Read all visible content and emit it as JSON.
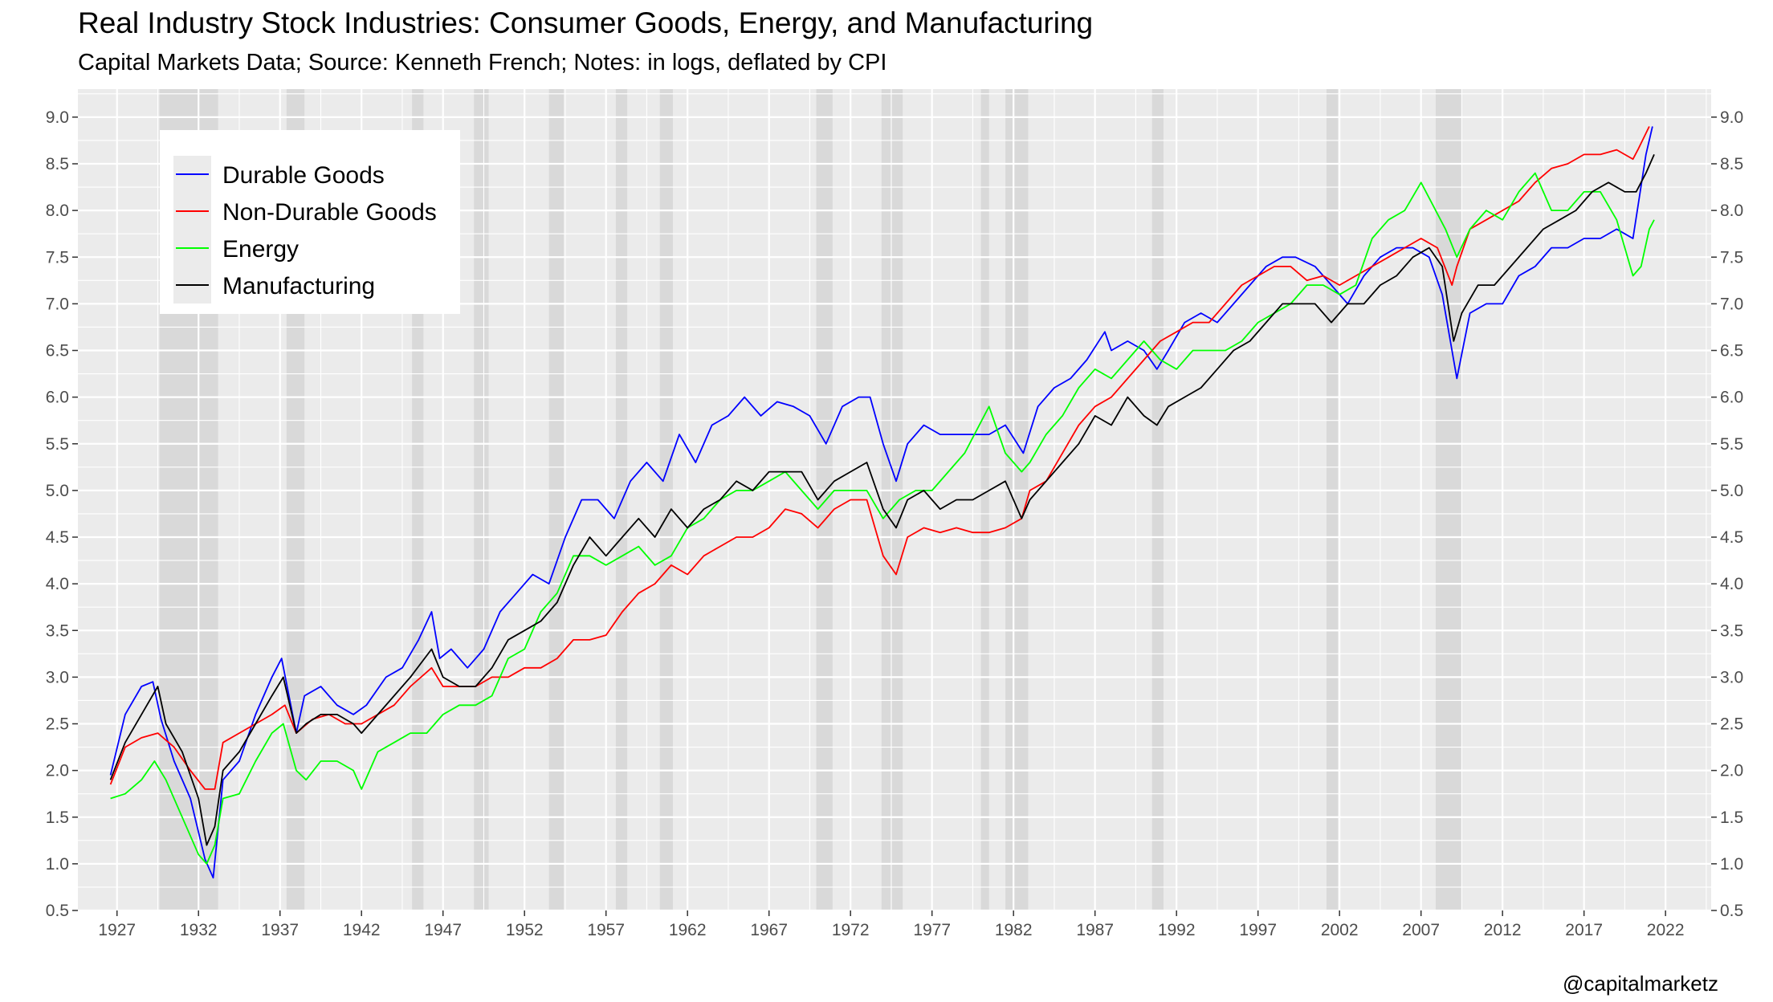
{
  "title": "Real Industry Stock Industries: Consumer Goods, Energy, and Manufacturing",
  "subtitle": "Capital Markets Data; Source: Kenneth French; Notes: in logs, deflated by CPI",
  "credit": "@capitalmarketz",
  "colors": {
    "panel": "#ebebeb",
    "grid": "#ffffff",
    "recession": "#d9d9d9",
    "tick_text": "#4d4d4d"
  },
  "chart_data": {
    "type": "line",
    "title": "Real Industry Stock Industries: Consumer Goods, Energy, and Manufacturing",
    "subtitle": "Capital Markets Data; Source: Kenneth French; Notes: in logs, deflated by CPI",
    "xlabel": "",
    "ylabel": "",
    "xlim": [
      1924.6,
      2024.8
    ],
    "ylim": [
      0.5,
      9.3
    ],
    "x_ticks": [
      "1927",
      "1932",
      "1937",
      "1942",
      "1947",
      "1952",
      "1957",
      "1962",
      "1967",
      "1972",
      "1977",
      "1982",
      "1987",
      "1992",
      "1997",
      "2002",
      "2007",
      "2012",
      "2017",
      "2022"
    ],
    "y_ticks": [
      "0.5",
      "1.0",
      "1.5",
      "2.0",
      "2.5",
      "3.0",
      "3.5",
      "4.0",
      "4.5",
      "5.0",
      "5.5",
      "6.0",
      "6.5",
      "7.0",
      "7.5",
      "8.0",
      "8.5",
      "9.0"
    ],
    "y_axis_secondary": true,
    "grid": true,
    "legend_position": "top-left",
    "recession_bands": [
      [
        1929.6,
        1933.2
      ],
      [
        1937.4,
        1938.5
      ],
      [
        1945.1,
        1945.8
      ],
      [
        1948.9,
        1949.8
      ],
      [
        1953.5,
        1954.4
      ],
      [
        1957.6,
        1958.3
      ],
      [
        1960.3,
        1961.1
      ],
      [
        1969.9,
        1970.9
      ],
      [
        1973.9,
        1975.2
      ],
      [
        1980.0,
        1980.5
      ],
      [
        1981.5,
        1982.9
      ],
      [
        1990.5,
        1991.2
      ],
      [
        2001.2,
        2001.9
      ],
      [
        2007.9,
        2009.5
      ]
    ],
    "series": [
      {
        "name": "Durable Goods",
        "color": "#0000ff",
        "x": [
          1926.6,
          1927.5,
          1928.5,
          1929.2,
          1929.7,
          1930.5,
          1931.5,
          1932.4,
          1932.9,
          1933.5,
          1934.5,
          1935.5,
          1936.5,
          1937.1,
          1938.0,
          1938.5,
          1939.5,
          1940.5,
          1941.5,
          1942.3,
          1943.5,
          1944.5,
          1945.5,
          1946.3,
          1946.8,
          1947.5,
          1948.5,
          1949.5,
          1950.5,
          1951.5,
          1952.5,
          1953.5,
          1954.5,
          1955.5,
          1956.5,
          1957.5,
          1958.5,
          1959.5,
          1960.5,
          1961.5,
          1962.5,
          1963.5,
          1964.5,
          1965.5,
          1966.5,
          1967.5,
          1968.5,
          1969.5,
          1970.5,
          1971.5,
          1972.5,
          1973.2,
          1974.0,
          1974.8,
          1975.5,
          1976.5,
          1977.5,
          1978.5,
          1979.5,
          1980.5,
          1981.5,
          1982.6,
          1983.5,
          1984.5,
          1985.5,
          1986.5,
          1987.6,
          1988.0,
          1989.0,
          1990.0,
          1990.8,
          1991.5,
          1992.5,
          1993.5,
          1994.5,
          1995.5,
          1996.5,
          1997.5,
          1998.5,
          1999.3,
          2000.5,
          2001.5,
          2002.5,
          2003.5,
          2004.5,
          2005.5,
          2006.5,
          2007.5,
          2008.3,
          2008.8,
          2009.2,
          2010.0,
          2011.0,
          2012.0,
          2013.0,
          2014.0,
          2015.0,
          2016.0,
          2017.0,
          2018.0,
          2019.0,
          2020.0,
          2020.8,
          2021.2
        ],
        "values": [
          1.95,
          2.6,
          2.9,
          2.95,
          2.55,
          2.1,
          1.7,
          1.05,
          0.85,
          1.9,
          2.1,
          2.6,
          3.0,
          3.2,
          2.4,
          2.8,
          2.9,
          2.7,
          2.6,
          2.7,
          3.0,
          3.1,
          3.4,
          3.7,
          3.2,
          3.3,
          3.1,
          3.3,
          3.7,
          3.9,
          4.1,
          4.0,
          4.5,
          4.9,
          4.9,
          4.7,
          5.1,
          5.3,
          5.1,
          5.6,
          5.3,
          5.7,
          5.8,
          6.0,
          5.8,
          5.95,
          5.9,
          5.8,
          5.5,
          5.9,
          6.0,
          6.0,
          5.5,
          5.1,
          5.5,
          5.7,
          5.6,
          5.6,
          5.6,
          5.6,
          5.7,
          5.4,
          5.9,
          6.1,
          6.2,
          6.4,
          6.7,
          6.5,
          6.6,
          6.5,
          6.3,
          6.5,
          6.8,
          6.9,
          6.8,
          7.0,
          7.2,
          7.4,
          7.5,
          7.5,
          7.4,
          7.2,
          7.0,
          7.3,
          7.5,
          7.6,
          7.6,
          7.5,
          7.1,
          6.6,
          6.2,
          6.9,
          7.0,
          7.0,
          7.3,
          7.4,
          7.6,
          7.6,
          7.7,
          7.7,
          7.8,
          7.7,
          8.6,
          8.9
        ]
      },
      {
        "name": "Non-Durable Goods",
        "color": "#ff0000",
        "x": [
          1926.6,
          1927.5,
          1928.5,
          1929.5,
          1930.5,
          1931.5,
          1932.4,
          1933.0,
          1933.5,
          1934.5,
          1935.5,
          1936.5,
          1937.3,
          1938.0,
          1939.0,
          1940.0,
          1941.0,
          1942.0,
          1943.0,
          1944.0,
          1945.0,
          1946.3,
          1947.0,
          1948.0,
          1949.0,
          1950.0,
          1951.0,
          1952.0,
          1953.0,
          1954.0,
          1955.0,
          1956.0,
          1957.0,
          1958.0,
          1959.0,
          1960.0,
          1961.0,
          1962.0,
          1963.0,
          1964.0,
          1965.0,
          1966.0,
          1967.0,
          1968.0,
          1969.0,
          1970.0,
          1971.0,
          1972.0,
          1973.0,
          1974.0,
          1974.8,
          1975.5,
          1976.5,
          1977.5,
          1978.5,
          1979.5,
          1980.5,
          1981.5,
          1982.5,
          1983.0,
          1984.0,
          1985.0,
          1986.0,
          1987.0,
          1988.0,
          1989.0,
          1990.0,
          1991.0,
          1992.0,
          1993.0,
          1994.0,
          1995.0,
          1996.0,
          1997.0,
          1998.0,
          1999.0,
          2000.0,
          2001.0,
          2002.0,
          2003.0,
          2004.0,
          2005.0,
          2006.0,
          2007.0,
          2008.0,
          2008.9,
          2009.2,
          2010.0,
          2011.0,
          2012.0,
          2013.0,
          2014.0,
          2015.0,
          2016.0,
          2017.0,
          2018.0,
          2019.0,
          2020.0,
          2020.3,
          2021.0
        ],
        "values": [
          1.85,
          2.25,
          2.35,
          2.4,
          2.25,
          2.0,
          1.8,
          1.8,
          2.3,
          2.4,
          2.5,
          2.6,
          2.7,
          2.4,
          2.55,
          2.6,
          2.5,
          2.5,
          2.6,
          2.7,
          2.9,
          3.1,
          2.9,
          2.9,
          2.9,
          3.0,
          3.0,
          3.1,
          3.1,
          3.2,
          3.4,
          3.4,
          3.45,
          3.7,
          3.9,
          4.0,
          4.2,
          4.1,
          4.3,
          4.4,
          4.5,
          4.5,
          4.6,
          4.8,
          4.75,
          4.6,
          4.8,
          4.9,
          4.9,
          4.3,
          4.1,
          4.5,
          4.6,
          4.55,
          4.6,
          4.55,
          4.55,
          4.6,
          4.7,
          5.0,
          5.1,
          5.4,
          5.7,
          5.9,
          6.0,
          6.2,
          6.4,
          6.6,
          6.7,
          6.8,
          6.8,
          7.0,
          7.2,
          7.3,
          7.4,
          7.4,
          7.25,
          7.3,
          7.2,
          7.3,
          7.4,
          7.5,
          7.6,
          7.7,
          7.6,
          7.2,
          7.4,
          7.8,
          7.9,
          8.0,
          8.1,
          8.3,
          8.45,
          8.5,
          8.6,
          8.6,
          8.65,
          8.55,
          8.65,
          8.9
        ]
      },
      {
        "name": "Energy",
        "color": "#00ff00",
        "x": [
          1926.6,
          1927.5,
          1928.5,
          1929.3,
          1930.0,
          1931.0,
          1932.0,
          1932.5,
          1933.0,
          1933.5,
          1934.5,
          1935.5,
          1936.5,
          1937.2,
          1938.0,
          1938.6,
          1939.5,
          1940.5,
          1941.5,
          1942.0,
          1943.0,
          1944.0,
          1945.0,
          1946.0,
          1947.0,
          1948.0,
          1949.0,
          1950.0,
          1951.0,
          1952.0,
          1953.0,
          1954.0,
          1955.0,
          1956.0,
          1957.0,
          1958.0,
          1959.0,
          1960.0,
          1961.0,
          1962.0,
          1963.0,
          1964.0,
          1965.0,
          1966.0,
          1967.0,
          1968.0,
          1969.0,
          1970.0,
          1971.0,
          1972.0,
          1973.0,
          1974.0,
          1975.0,
          1976.0,
          1977.0,
          1978.0,
          1979.0,
          1980.5,
          1981.5,
          1982.5,
          1983.0,
          1984.0,
          1985.0,
          1986.0,
          1987.0,
          1988.0,
          1989.0,
          1990.0,
          1991.0,
          1992.0,
          1993.0,
          1994.0,
          1995.0,
          1996.0,
          1997.0,
          1998.0,
          1999.0,
          2000.0,
          2001.0,
          2002.0,
          2003.0,
          2004.0,
          2005.0,
          2006.0,
          2007.0,
          2008.5,
          2009.2,
          2010.0,
          2011.0,
          2012.0,
          2013.0,
          2014.0,
          2015.0,
          2016.0,
          2017.0,
          2018.0,
          2019.0,
          2020.0,
          2020.5,
          2021.0,
          2021.3
        ],
        "values": [
          1.7,
          1.75,
          1.9,
          2.1,
          1.9,
          1.5,
          1.1,
          1.0,
          1.2,
          1.7,
          1.75,
          2.1,
          2.4,
          2.5,
          2.0,
          1.9,
          2.1,
          2.1,
          2.0,
          1.8,
          2.2,
          2.3,
          2.4,
          2.4,
          2.6,
          2.7,
          2.7,
          2.8,
          3.2,
          3.3,
          3.7,
          3.9,
          4.3,
          4.3,
          4.2,
          4.3,
          4.4,
          4.2,
          4.3,
          4.6,
          4.7,
          4.9,
          5.0,
          5.0,
          5.1,
          5.2,
          5.0,
          4.8,
          5.0,
          5.0,
          5.0,
          4.7,
          4.9,
          5.0,
          5.0,
          5.2,
          5.4,
          5.9,
          5.4,
          5.2,
          5.3,
          5.6,
          5.8,
          6.1,
          6.3,
          6.2,
          6.4,
          6.6,
          6.4,
          6.3,
          6.5,
          6.5,
          6.5,
          6.6,
          6.8,
          6.9,
          7.0,
          7.2,
          7.2,
          7.1,
          7.2,
          7.7,
          7.9,
          8.0,
          8.3,
          7.8,
          7.5,
          7.8,
          8.0,
          7.9,
          8.2,
          8.4,
          8.0,
          8.0,
          8.2,
          8.2,
          7.9,
          7.3,
          7.4,
          7.8,
          7.9
        ]
      },
      {
        "name": "Manufacturing",
        "color": "#000000",
        "x": [
          1926.6,
          1927.5,
          1928.5,
          1929.5,
          1930.0,
          1931.0,
          1932.0,
          1932.5,
          1933.0,
          1933.5,
          1934.5,
          1935.5,
          1936.5,
          1937.2,
          1938.0,
          1938.6,
          1939.5,
          1940.5,
          1941.5,
          1942.0,
          1943.0,
          1944.0,
          1945.0,
          1946.3,
          1947.0,
          1948.0,
          1949.0,
          1950.0,
          1951.0,
          1952.0,
          1953.0,
          1954.0,
          1955.0,
          1956.0,
          1957.0,
          1958.0,
          1959.0,
          1960.0,
          1961.0,
          1962.0,
          1963.0,
          1964.0,
          1965.0,
          1966.0,
          1967.0,
          1968.0,
          1969.0,
          1970.0,
          1971.0,
          1972.0,
          1973.0,
          1974.0,
          1974.8,
          1975.5,
          1976.5,
          1977.5,
          1978.5,
          1979.5,
          1980.5,
          1981.5,
          1982.5,
          1983.0,
          1984.0,
          1985.0,
          1986.0,
          1987.0,
          1988.0,
          1989.0,
          1990.0,
          1990.8,
          1991.5,
          1992.5,
          1993.5,
          1994.5,
          1995.5,
          1996.5,
          1997.5,
          1998.5,
          1999.5,
          2000.5,
          2001.5,
          2002.5,
          2003.5,
          2004.5,
          2005.5,
          2006.5,
          2007.5,
          2008.3,
          2009.0,
          2009.5,
          2010.5,
          2011.5,
          2012.5,
          2013.5,
          2014.5,
          2015.5,
          2016.5,
          2017.5,
          2018.5,
          2019.5,
          2020.2,
          2020.8,
          2021.3
        ],
        "values": [
          1.9,
          2.3,
          2.6,
          2.9,
          2.5,
          2.2,
          1.7,
          1.2,
          1.4,
          2.0,
          2.2,
          2.5,
          2.8,
          3.0,
          2.4,
          2.5,
          2.6,
          2.6,
          2.5,
          2.4,
          2.6,
          2.8,
          3.0,
          3.3,
          3.0,
          2.9,
          2.9,
          3.1,
          3.4,
          3.5,
          3.6,
          3.8,
          4.2,
          4.5,
          4.3,
          4.5,
          4.7,
          4.5,
          4.8,
          4.6,
          4.8,
          4.9,
          5.1,
          5.0,
          5.2,
          5.2,
          5.2,
          4.9,
          5.1,
          5.2,
          5.3,
          4.8,
          4.6,
          4.9,
          5.0,
          4.8,
          4.9,
          4.9,
          5.0,
          5.1,
          4.7,
          4.9,
          5.1,
          5.3,
          5.5,
          5.8,
          5.7,
          6.0,
          5.8,
          5.7,
          5.9,
          6.0,
          6.1,
          6.3,
          6.5,
          6.6,
          6.8,
          7.0,
          7.0,
          7.0,
          6.8,
          7.0,
          7.0,
          7.2,
          7.3,
          7.5,
          7.6,
          7.4,
          6.6,
          6.9,
          7.2,
          7.2,
          7.4,
          7.6,
          7.8,
          7.9,
          8.0,
          8.2,
          8.3,
          8.2,
          8.2,
          8.4,
          8.6
        ]
      }
    ]
  }
}
